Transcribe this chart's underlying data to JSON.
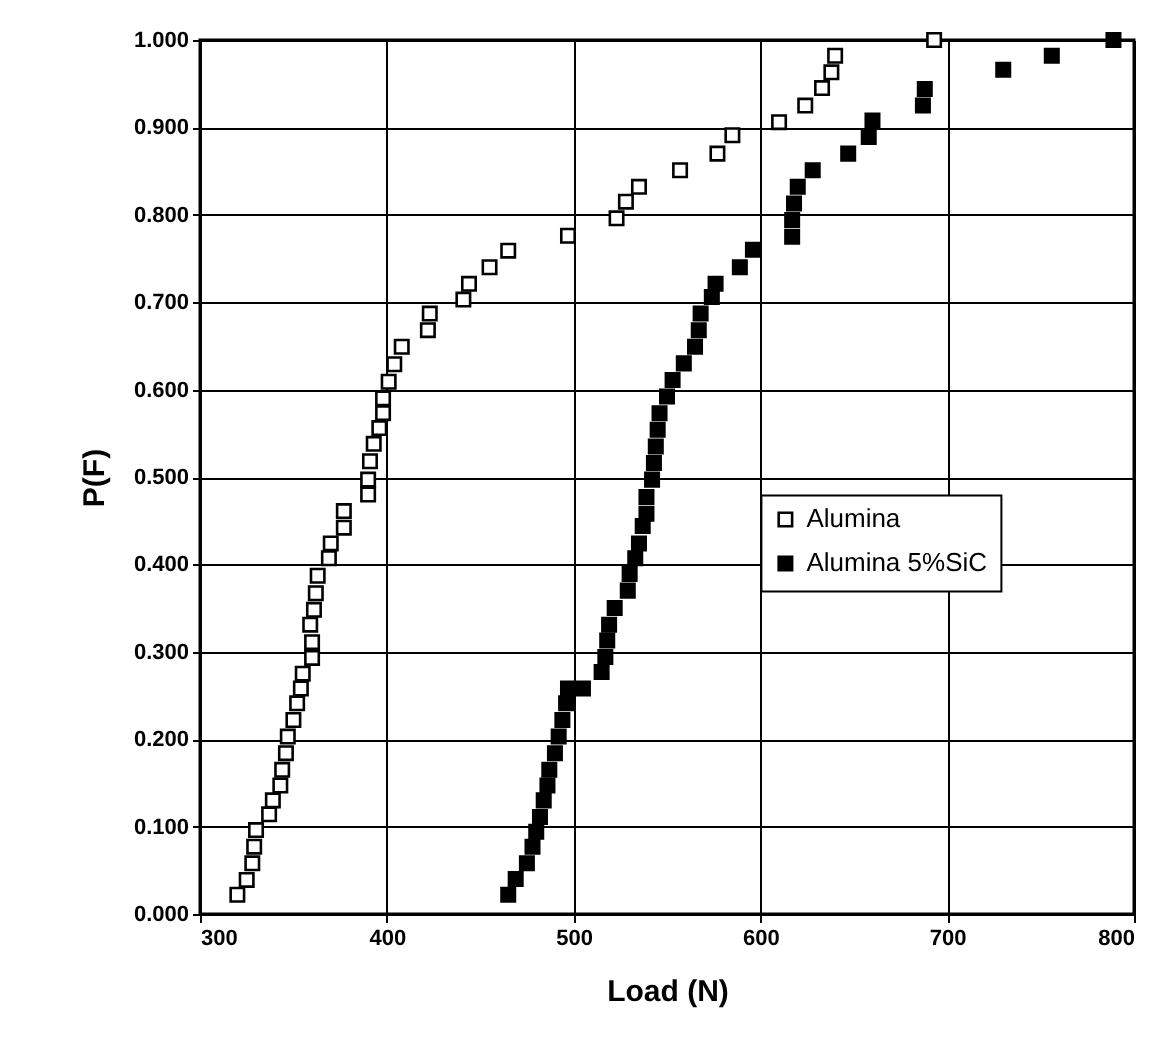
{
  "chart_data": {
    "type": "scatter",
    "xlabel": "Load (N)",
    "ylabel": "P(F)",
    "xlim": [
      300,
      800
    ],
    "xticks": [
      300,
      400,
      500,
      600,
      700,
      800
    ],
    "ylim": [
      0,
      1
    ],
    "yticks": [
      {
        "value": 0,
        "label": "0.000"
      },
      {
        "value": 0.1,
        "label": "0.100"
      },
      {
        "value": 0.2,
        "label": "0.200"
      },
      {
        "value": 0.3,
        "label": "0.300"
      },
      {
        "value": 0.4,
        "label": "0.400"
      },
      {
        "value": 0.5,
        "label": "0.500"
      },
      {
        "value": 0.6,
        "label": "0.600"
      },
      {
        "value": 0.7,
        "label": "0.700"
      },
      {
        "value": 0.8,
        "label": "0.800"
      },
      {
        "value": 0.9,
        "label": "0.900"
      },
      {
        "value": 1,
        "label": "1.000"
      }
    ],
    "grid": true,
    "legend": "right",
    "marker": "square",
    "series": [
      {
        "name": "Alumina",
        "color": "#ffffff",
        "x": [
          320,
          325,
          328,
          329,
          330,
          337,
          339,
          343,
          344,
          346,
          347,
          350,
          352,
          354,
          355,
          360,
          360,
          359,
          361,
          362,
          363,
          369,
          370,
          377,
          377,
          390,
          390,
          391,
          393,
          396,
          398,
          398,
          401,
          404,
          408,
          422,
          423,
          441,
          444,
          455,
          465,
          497,
          523,
          528,
          535,
          557,
          577,
          585,
          610,
          624,
          633,
          638,
          640,
          693
        ],
        "values": [
          0.022,
          0.039,
          0.058,
          0.077,
          0.096,
          0.114,
          0.13,
          0.147,
          0.165,
          0.184,
          0.203,
          0.222,
          0.241,
          0.258,
          0.275,
          0.293,
          0.311,
          0.331,
          0.348,
          0.367,
          0.387,
          0.407,
          0.424,
          0.442,
          0.461,
          0.48,
          0.497,
          0.518,
          0.538,
          0.556,
          0.573,
          0.59,
          0.609,
          0.629,
          0.649,
          0.668,
          0.687,
          0.703,
          0.721,
          0.74,
          0.759,
          0.776,
          0.796,
          0.815,
          0.832,
          0.851,
          0.87,
          0.891,
          0.906,
          0.925,
          0.945,
          0.963,
          0.982,
          1.0
        ]
      },
      {
        "name": "Alumina 5%SiC",
        "color": "#000000",
        "x": [
          465,
          469,
          475,
          478,
          480,
          482,
          484,
          486,
          487,
          490,
          492,
          494,
          496,
          497,
          505,
          515,
          517,
          518,
          519,
          522,
          529,
          530,
          533,
          535,
          537,
          539,
          539,
          542,
          543,
          544,
          545,
          546,
          550,
          553,
          559,
          565,
          567,
          568,
          574,
          576,
          589,
          596,
          617,
          617,
          618,
          620,
          628,
          647,
          658,
          660,
          687,
          688,
          730,
          756,
          789
        ],
        "values": [
          0.022,
          0.04,
          0.058,
          0.077,
          0.094,
          0.111,
          0.13,
          0.147,
          0.165,
          0.184,
          0.203,
          0.222,
          0.241,
          0.258,
          0.258,
          0.277,
          0.294,
          0.313,
          0.331,
          0.35,
          0.37,
          0.389,
          0.407,
          0.424,
          0.444,
          0.458,
          0.477,
          0.497,
          0.516,
          0.535,
          0.554,
          0.573,
          0.592,
          0.611,
          0.63,
          0.649,
          0.668,
          0.687,
          0.706,
          0.721,
          0.74,
          0.76,
          0.775,
          0.794,
          0.813,
          0.832,
          0.851,
          0.87,
          0.889,
          0.908,
          0.925,
          0.944,
          0.966,
          0.982,
          1.0
        ]
      }
    ]
  }
}
